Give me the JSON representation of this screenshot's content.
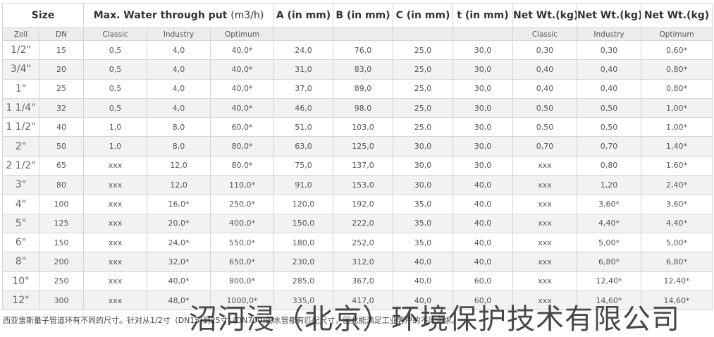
{
  "header": {
    "row1": {
      "size": "Size",
      "throughput_title": "Max. Water through put",
      "throughput_unit": "(m3/h)",
      "a": "A (in mm)",
      "b": "B (in mm)",
      "c": "C (in mm)",
      "t": "t (in mm)",
      "net1": "Net Wt.(kg)",
      "net2": "Net Wt.(kg)",
      "net3": "Net Wt.(kg)"
    },
    "row2": [
      "Zoll",
      "DN",
      "Classic",
      "Industry",
      "Optimum",
      "",
      "",
      "",
      "",
      "Classic",
      "Industry",
      "Optimum"
    ]
  },
  "table": {
    "rows": [
      [
        "1/2\"",
        "15",
        "0,5",
        "4,0",
        "40,0*",
        "24,0",
        "76,0",
        "25,0",
        "30,0",
        "0,30",
        "0,30",
        "0,60*"
      ],
      [
        "3/4\"",
        "20",
        "0,5",
        "4,0",
        "40,0*",
        "31,0",
        "83,0",
        "25,0",
        "30,0",
        "0,40",
        "0,40",
        "0,80*"
      ],
      [
        "1\"",
        "25",
        "0,5",
        "4,0",
        "40,0*",
        "37,0",
        "89,0",
        "25,0",
        "30,0",
        "0,40",
        "0,40",
        "0,80*"
      ],
      [
        "1 1/4\"",
        "32",
        "0,5",
        "4,0",
        "40,0*",
        "46,0",
        "98.0",
        "25,0",
        "30,0",
        "0,50",
        "0,50",
        "1,00*"
      ],
      [
        "1 1/2\"",
        "40",
        "1,0",
        "8,0",
        "60,0*",
        "51,0",
        "103,0",
        "25,0",
        "30,0",
        "0,50",
        "0,50",
        "1,00*"
      ],
      [
        "2\"",
        "50",
        "1,0",
        "8,0",
        "80,0*",
        "63,0",
        "125,0",
        "30,0",
        "30,0",
        "0,70",
        "0,70",
        "1,40*"
      ],
      [
        "2 1/2\"",
        "65",
        "xxx",
        "12,0",
        "80,0*",
        "75,0",
        "137,0",
        "30,0",
        "30,0",
        "xxx",
        "0,80",
        "1,60*"
      ],
      [
        "3\"",
        "80",
        "xxx",
        "12,0",
        "110,0*",
        "91,0",
        "153,0",
        "30,0",
        "40,0",
        "xxx",
        "1,20",
        "2,40*"
      ],
      [
        "4\"",
        "100",
        "xxx",
        "16,0*",
        "250,0*",
        "120,0",
        "192,0",
        "35,0",
        "40,0",
        "xxx",
        "3,60*",
        "3,60*"
      ],
      [
        "5\"",
        "125",
        "xxx",
        "20,0*",
        "400,0*",
        "150,0",
        "222,0",
        "35,0",
        "40,0",
        "xxx",
        "4,40*",
        "4,40*"
      ],
      [
        "6\"",
        "150",
        "xxx",
        "24,0*",
        "550,0*",
        "180,0",
        "252,0",
        "35,0",
        "40,0",
        "xxx",
        "5,00*",
        "5,00*"
      ],
      [
        "8\"",
        "200",
        "xxx",
        "32,0*",
        "650,0*",
        "230,0",
        "312,0",
        "40,0",
        "40,0",
        "xxx",
        "6,80*",
        "6,80*"
      ],
      [
        "10\"",
        "250",
        "xxx",
        "40,0*",
        "800,0*",
        "285,0",
        "367,0",
        "40,0",
        "60,0",
        "xxx",
        "12,40*",
        "12,40*"
      ],
      [
        "12\"",
        "300",
        "xxx",
        "48,0*",
        "1000,0*",
        "335,0",
        "417,0",
        "40,0",
        "60,0",
        "xxx",
        "14,60*",
        "14,60*"
      ]
    ]
  },
  "footer": {
    "note": "西亚雷斯量子管道环有不同的尺寸。针对从1/2寸（DN15)到25寸（DN700)的水管都有匹配尺寸，因此能满足工业客户的不同需求。"
  },
  "watermark": "沼河浸（北京）环境保护技术有限公司"
}
